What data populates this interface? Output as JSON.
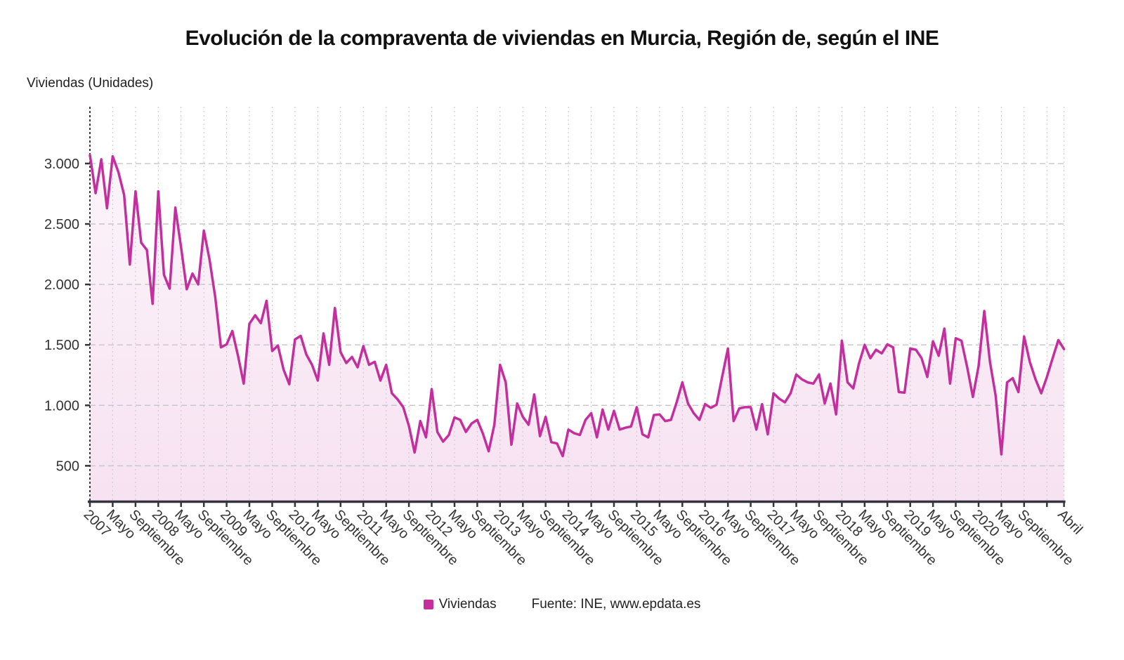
{
  "title": "Evolución de la compraventa de viviendas en Murcia, Región de, según el INE",
  "y_axis_title": "Viviendas (Unidades)",
  "legend": {
    "label": "Viviendas",
    "source": "Fuente: INE, www.epdata.es"
  },
  "colors": {
    "line": "#c42f9e",
    "fill_top": "rgba(196,47,158,0.05)",
    "fill_bottom": "rgba(196,47,158,0.14)",
    "gridline": "#c6c6c6",
    "axis": "#343440",
    "label_text": "#333333"
  },
  "chart_data": {
    "type": "line",
    "area_fill": true,
    "title": "Evolución de la compraventa de viviendas en Murcia, Región de, según el INE",
    "ylabel": "Viviendas (Unidades)",
    "x_start": "2007-01",
    "x_end": "2021-04",
    "frequency": "monthly",
    "legend_position": "bottom",
    "grid": true,
    "ylim": [
      212,
      3470
    ],
    "y_ticks": [
      {
        "value": 500,
        "label": "500"
      },
      {
        "value": 1000,
        "label": "1.000"
      },
      {
        "value": 1500,
        "label": "1.500"
      },
      {
        "value": 2000,
        "label": "2.000"
      },
      {
        "value": 2500,
        "label": "2.500"
      },
      {
        "value": 3000,
        "label": "3.000"
      }
    ],
    "x_gridline_every": 4,
    "x_tick_labels": [
      {
        "index": 0,
        "label": "2007"
      },
      {
        "index": 4,
        "label": "Mayo"
      },
      {
        "index": 8,
        "label": "Septiembre"
      },
      {
        "index": 12,
        "label": "2008"
      },
      {
        "index": 16,
        "label": "Mayo"
      },
      {
        "index": 20,
        "label": "Septiembre"
      },
      {
        "index": 24,
        "label": "2009"
      },
      {
        "index": 28,
        "label": "Mayo"
      },
      {
        "index": 32,
        "label": "Septiembre"
      },
      {
        "index": 36,
        "label": "2010"
      },
      {
        "index": 40,
        "label": "Mayo"
      },
      {
        "index": 44,
        "label": "Septiembre"
      },
      {
        "index": 48,
        "label": "2011"
      },
      {
        "index": 52,
        "label": "Mayo"
      },
      {
        "index": 56,
        "label": "Septiembre"
      },
      {
        "index": 60,
        "label": "2012"
      },
      {
        "index": 64,
        "label": "Mayo"
      },
      {
        "index": 68,
        "label": "Septiembre"
      },
      {
        "index": 72,
        "label": "2013"
      },
      {
        "index": 76,
        "label": "Mayo"
      },
      {
        "index": 80,
        "label": "Septiembre"
      },
      {
        "index": 84,
        "label": "2014"
      },
      {
        "index": 88,
        "label": "Mayo"
      },
      {
        "index": 92,
        "label": "Septiembre"
      },
      {
        "index": 96,
        "label": "2015"
      },
      {
        "index": 100,
        "label": "Mayo"
      },
      {
        "index": 104,
        "label": "Septiembre"
      },
      {
        "index": 108,
        "label": "2016"
      },
      {
        "index": 112,
        "label": "Mayo"
      },
      {
        "index": 116,
        "label": "Septiembre"
      },
      {
        "index": 120,
        "label": "2017"
      },
      {
        "index": 124,
        "label": "Mayo"
      },
      {
        "index": 128,
        "label": "Septiembre"
      },
      {
        "index": 132,
        "label": "2018"
      },
      {
        "index": 136,
        "label": "Mayo"
      },
      {
        "index": 140,
        "label": "Septiembre"
      },
      {
        "index": 144,
        "label": "2019"
      },
      {
        "index": 148,
        "label": "Mayo"
      },
      {
        "index": 152,
        "label": "Septiembre"
      },
      {
        "index": 156,
        "label": "2020"
      },
      {
        "index": 160,
        "label": "Mayo"
      },
      {
        "index": 164,
        "label": "Septiembre"
      },
      {
        "index": 171,
        "label": "Abril"
      }
    ],
    "series": [
      {
        "name": "Viviendas",
        "color": "#c42f9e",
        "values": [
          3070,
          2755,
          3035,
          2630,
          3060,
          2930,
          2740,
          2165,
          2770,
          2345,
          2285,
          1840,
          2770,
          2080,
          1965,
          2635,
          2310,
          1960,
          2090,
          2000,
          2445,
          2205,
          1895,
          1480,
          1505,
          1615,
          1410,
          1180,
          1675,
          1745,
          1680,
          1865,
          1450,
          1495,
          1295,
          1175,
          1545,
          1575,
          1420,
          1335,
          1205,
          1595,
          1335,
          1805,
          1440,
          1350,
          1400,
          1315,
          1490,
          1335,
          1360,
          1205,
          1335,
          1100,
          1050,
          985,
          830,
          610,
          870,
          735,
          1135,
          780,
          700,
          755,
          900,
          880,
          780,
          850,
          880,
          765,
          620,
          840,
          1335,
          1190,
          675,
          1015,
          905,
          840,
          1090,
          745,
          905,
          695,
          685,
          580,
          800,
          770,
          755,
          880,
          935,
          735,
          965,
          800,
          955,
          800,
          815,
          825,
          985,
          760,
          735,
          920,
          925,
          870,
          880,
          1025,
          1190,
          1015,
          935,
          880,
          1010,
          980,
          1005,
          1240,
          1470,
          870,
          975,
          985,
          985,
          800,
          1010,
          760,
          1100,
          1055,
          1025,
          1100,
          1255,
          1215,
          1190,
          1180,
          1255,
          1015,
          1180,
          925,
          1535,
          1190,
          1140,
          1345,
          1500,
          1390,
          1460,
          1430,
          1505,
          1480,
          1110,
          1105,
          1470,
          1460,
          1390,
          1235,
          1530,
          1410,
          1635,
          1180,
          1555,
          1535,
          1315,
          1070,
          1325,
          1780,
          1360,
          1080,
          595,
          1190,
          1225,
          1110,
          1570,
          1360,
          1215,
          1100,
          1235,
          1390,
          1540,
          1465
        ]
      }
    ]
  }
}
